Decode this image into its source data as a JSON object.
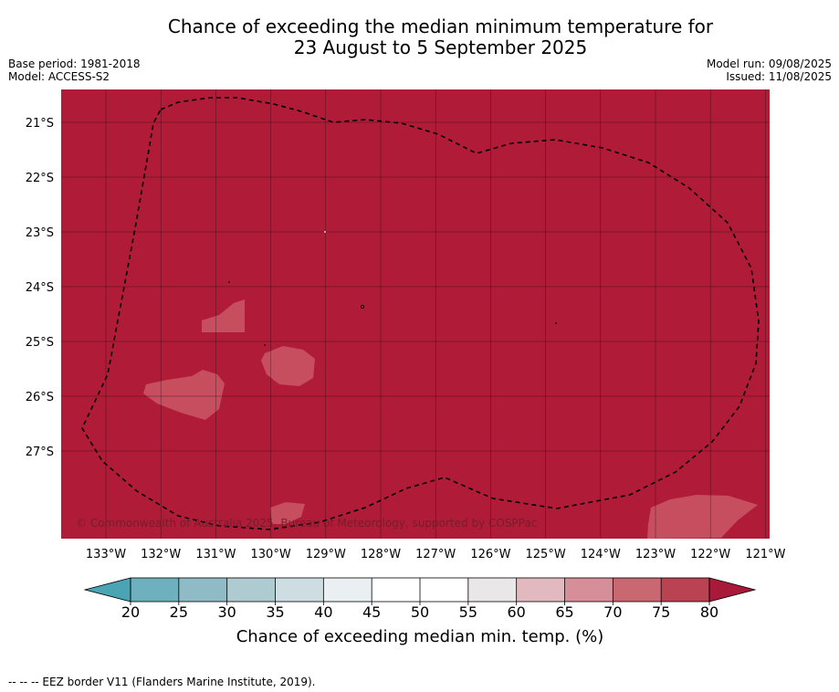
{
  "title": {
    "line1": "Chance of exceeding the median minimum temperature for",
    "line2": "23 August to 5 September 2025"
  },
  "meta": {
    "base_period": "Base period: 1981-2018",
    "model": "Model: ACCESS-S2",
    "model_run": "Model run: 09/08/2025",
    "issued": "Issued: 11/08/2025"
  },
  "map": {
    "longitude_labels": [
      "133°W",
      "132°W",
      "131°W",
      "130°W",
      "129°W",
      "128°W",
      "127°W",
      "126°W",
      "125°W",
      "124°W",
      "123°W",
      "122°W",
      "121°W"
    ],
    "latitude_labels": [
      "21°S",
      "22°S",
      "23°S",
      "24°S",
      "25°S",
      "26°S",
      "27°S"
    ],
    "background_color": "#b01c38",
    "patch_color": "#c64e5e",
    "copyright": "© Commonwealth of Australia 2025, Bureau of Meteorology, supported by COSPPac"
  },
  "colorbar": {
    "ticks": [
      "20",
      "25",
      "30",
      "35",
      "40",
      "45",
      "50",
      "55",
      "60",
      "65",
      "70",
      "75",
      "80"
    ],
    "colors": [
      "#6fb0be",
      "#8fbbc6",
      "#aecbd2",
      "#cddde2",
      "#eaf0f2",
      "#ffffff",
      "#ffffff",
      "#e9e7e8",
      "#e2b9be",
      "#d68f98",
      "#c96870",
      "#b94350"
    ],
    "extend_low_color": "#4ba4b4",
    "extend_high_color": "#a8193a",
    "label": "Chance of exceeding median min. temp. (%)"
  },
  "footer": {
    "legend_text": "--  --  -- EEZ border V11 (Flanders Marine Institute, 2019)."
  }
}
